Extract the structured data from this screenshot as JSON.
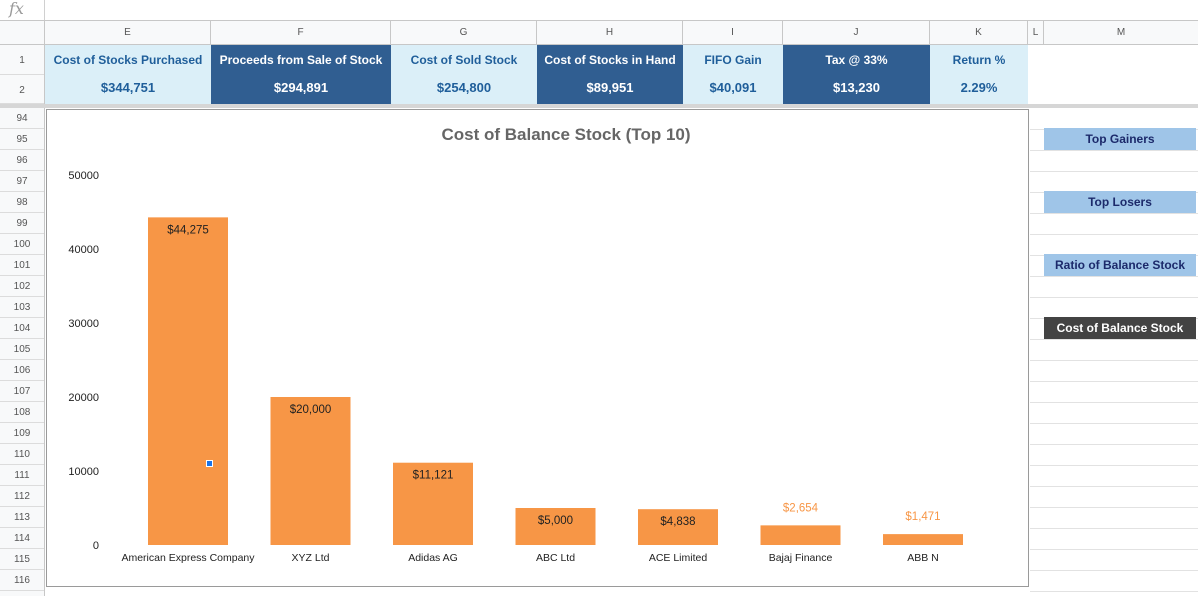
{
  "formula_bar": {
    "icon": "fx",
    "value": ""
  },
  "columns": [
    "E",
    "F",
    "G",
    "H",
    "I",
    "J",
    "K",
    "L",
    "M"
  ],
  "rows": [
    "1",
    "2",
    "94",
    "95",
    "96",
    "97",
    "98",
    "99",
    "100",
    "101",
    "102",
    "103",
    "104",
    "105",
    "106",
    "107",
    "108",
    "109",
    "110",
    "111",
    "112",
    "113",
    "114",
    "115",
    "116"
  ],
  "kpis": [
    {
      "label": "Cost of Stocks Purchased",
      "value": "$344,751",
      "style": "light"
    },
    {
      "label": "Proceeds from Sale of Stock",
      "value": "$294,891",
      "style": "dark"
    },
    {
      "label": "Cost of Sold Stock",
      "value": "$254,800",
      "style": "light"
    },
    {
      "label": "Cost of Stocks in Hand",
      "value": "$89,951",
      "style": "dark"
    },
    {
      "label": "FIFO Gain",
      "value": "$40,091",
      "style": "light"
    },
    {
      "label": "Tax @ 33%",
      "value": "$13,230",
      "style": "dark"
    },
    {
      "label": "Return %",
      "value": "2.29%",
      "style": "light"
    }
  ],
  "side_buttons": [
    {
      "label": "Top Gainers",
      "style": "light"
    },
    {
      "label": "Top Losers",
      "style": "light"
    },
    {
      "label": "Ratio of Balance Stock",
      "style": "light"
    },
    {
      "label": "Cost of Balance Stock",
      "style": "dark"
    }
  ],
  "chart_data": {
    "type": "bar",
    "title": "Cost of Balance Stock (Top 10)",
    "categories": [
      "American Express Company",
      "XYZ Ltd",
      "Adidas AG",
      "ABC Ltd",
      "ACE Limited",
      "Bajaj Finance",
      "ABB N"
    ],
    "values": [
      44275,
      20000,
      11121,
      5000,
      4838,
      2654,
      1471
    ],
    "data_labels": [
      "$44,275",
      "$20,000",
      "$11,121",
      "$5,000",
      "$4,838",
      "$2,654",
      "$1,471"
    ],
    "ylim": [
      0,
      50000
    ],
    "yticks": [
      0,
      10000,
      20000,
      30000,
      40000,
      50000
    ],
    "ytick_labels": [
      "0",
      "10000",
      "20000",
      "30000",
      "40000",
      "50000"
    ],
    "bar_color": "#f79646",
    "grid": false,
    "legend": "none"
  },
  "colors": {
    "kpi_light_bg": "#dbeff8",
    "kpi_dark_bg": "#305e91",
    "button_light_bg": "#9fc5e8",
    "button_dark_bg": "#434343"
  }
}
